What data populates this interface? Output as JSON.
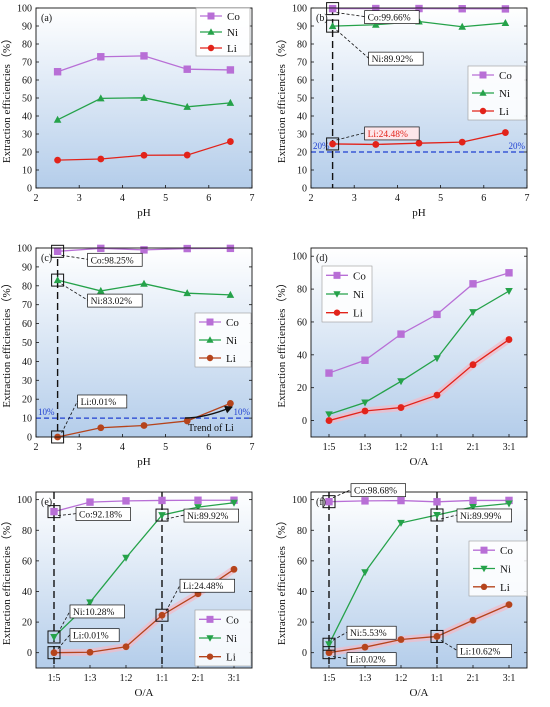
{
  "chart_data": [
    {
      "type": "line",
      "panel_label": "(a)",
      "xlabel": "pH",
      "ylabel": "Extraction efficiencies（%）",
      "x_is_categorical": false,
      "xlim": [
        2,
        7
      ],
      "ylim": [
        0,
        100
      ],
      "xticks": [
        2,
        3,
        4,
        5,
        6,
        7
      ],
      "yticks": [
        0,
        10,
        20,
        30,
        40,
        50,
        60,
        70,
        80,
        90,
        100
      ],
      "x": [
        2.5,
        3.5,
        4.5,
        5.5,
        6.5
      ],
      "series": [
        {
          "name": "Co",
          "color": "#b86fd6",
          "marker": "square",
          "values": [
            64.6,
            72.9,
            73.4,
            66.0,
            65.6
          ]
        },
        {
          "name": "Ni",
          "color": "#25a24a",
          "marker": "triangle-up",
          "values": [
            37.9,
            49.8,
            50.1,
            45.1,
            47.3
          ]
        },
        {
          "name": "Li",
          "color": "#e2231a",
          "marker": "circle",
          "values": [
            15.5,
            16.1,
            18.2,
            18.3,
            25.8
          ]
        }
      ],
      "legend_position": "top-right",
      "threshold": null,
      "callouts": []
    },
    {
      "type": "line",
      "panel_label": "(b)",
      "xlabel": "pH",
      "ylabel": "Extraction efficiencies（%）",
      "x_is_categorical": false,
      "xlim": [
        2,
        7
      ],
      "ylim": [
        0,
        100
      ],
      "xticks": [
        2,
        3,
        4,
        5,
        6,
        7
      ],
      "yticks": [
        0,
        10,
        20,
        30,
        40,
        50,
        60,
        70,
        80,
        90,
        100
      ],
      "x": [
        2.5,
        3.5,
        4.5,
        5.5,
        6.5
      ],
      "series": [
        {
          "name": "Co",
          "color": "#b86fd6",
          "marker": "square",
          "values": [
            99.66,
            99.7,
            99.7,
            99.6,
            99.5
          ]
        },
        {
          "name": "Ni",
          "color": "#25a24a",
          "marker": "triangle-up",
          "values": [
            89.92,
            90.7,
            92.5,
            89.6,
            91.7
          ]
        },
        {
          "name": "Li",
          "color": "#e2231a",
          "marker": "circle",
          "values": [
            24.48,
            24.2,
            24.9,
            25.5,
            30.8
          ]
        }
      ],
      "legend_position": "center-right",
      "threshold": {
        "value": 20,
        "label_left": "20%",
        "label_right": "20%"
      },
      "vline_x": 2.5,
      "callouts": [
        {
          "text": "Co:99.66%",
          "series": "Co",
          "x": 2.5,
          "y": 99.66,
          "text_color": "#111111"
        },
        {
          "text": "Ni:89.92%",
          "series": "Ni",
          "x": 2.5,
          "y": 89.92,
          "text_color": "#111111"
        },
        {
          "text": "Li:24.48%",
          "series": "Li",
          "x": 2.5,
          "y": 24.48,
          "text_color": "#e2231a"
        }
      ]
    },
    {
      "type": "line",
      "panel_label": "(c)",
      "xlabel": "pH",
      "ylabel": "Extraction efficiencies（%）",
      "x_is_categorical": false,
      "xlim": [
        2,
        7
      ],
      "ylim": [
        0,
        100
      ],
      "xticks": [
        2,
        3,
        4,
        5,
        6,
        7
      ],
      "yticks": [
        0,
        10,
        20,
        30,
        40,
        50,
        60,
        70,
        80,
        90,
        100
      ],
      "x": [
        2.5,
        3.5,
        4.5,
        5.5,
        6.5
      ],
      "series": [
        {
          "name": "Co",
          "color": "#b86fd6",
          "marker": "square",
          "values": [
            98.25,
            99.8,
            99.0,
            99.7,
            99.8
          ]
        },
        {
          "name": "Ni",
          "color": "#25a24a",
          "marker": "triangle-up",
          "values": [
            83.02,
            77.3,
            81.1,
            76.1,
            75.2
          ]
        },
        {
          "name": "Li",
          "color": "#b5441c",
          "marker": "circle",
          "values": [
            0.01,
            4.9,
            6.1,
            8.5,
            17.8
          ]
        }
      ],
      "legend_position": "center-right",
      "threshold": {
        "value": 10,
        "label_left": "10%",
        "label_right": "10%"
      },
      "vline_x": 2.5,
      "trend_label": "Trend of Li",
      "callouts": [
        {
          "text": "Co:98.25%",
          "series": "Co",
          "x": 2.5,
          "y": 98.25,
          "text_color": "#111111"
        },
        {
          "text": "Ni:83.02%",
          "series": "Ni",
          "x": 2.5,
          "y": 83.02,
          "text_color": "#111111"
        },
        {
          "text": "Li:0.01%",
          "series": "Li",
          "x": 2.5,
          "y": 0.01,
          "text_color": "#111111"
        }
      ]
    },
    {
      "type": "line",
      "panel_label": "(d)",
      "xlabel": "O/A",
      "ylabel": "Extraction efficiencies（%）",
      "x_is_categorical": true,
      "categories": [
        "1:5",
        "1:3",
        "1:2",
        "1:1",
        "2:1",
        "3:1"
      ],
      "ylim": [
        -10,
        105
      ],
      "yticks": [
        0,
        20,
        40,
        60,
        80,
        100
      ],
      "series": [
        {
          "name": "Co",
          "color": "#b86fd6",
          "marker": "square",
          "values": [
            28.9,
            36.7,
            52.6,
            64.6,
            83.2,
            89.9
          ]
        },
        {
          "name": "Ni",
          "color": "#25a24a",
          "marker": "triangle-down",
          "values": [
            3.8,
            11.0,
            23.9,
            37.9,
            66.0,
            78.8
          ]
        },
        {
          "name": "Li",
          "color": "#e2231a",
          "marker": "circle",
          "values": [
            0.0,
            5.8,
            7.9,
            15.5,
            34.0,
            49.3
          ]
        }
      ],
      "legend_position": "top-left",
      "threshold": null,
      "callouts": []
    },
    {
      "type": "line",
      "panel_label": "(e)",
      "xlabel": "O/A",
      "ylabel": "Extraction efficiencies（%）",
      "x_is_categorical": true,
      "categories": [
        "1:5",
        "1:3",
        "1:2",
        "1:1",
        "2:1",
        "3:1"
      ],
      "ylim": [
        -10,
        105
      ],
      "yticks": [
        0,
        20,
        40,
        60,
        80,
        100
      ],
      "series": [
        {
          "name": "Co",
          "color": "#b86fd6",
          "marker": "square",
          "values": [
            92.18,
            98.4,
            99.2,
            99.5,
            99.6,
            99.6
          ]
        },
        {
          "name": "Ni",
          "color": "#25a24a",
          "marker": "triangle-down",
          "values": [
            10.28,
            32.9,
            62.0,
            89.92,
            95.1,
            98.0
          ]
        },
        {
          "name": "Li",
          "color": "#b5441c",
          "marker": "circle",
          "values": [
            0.01,
            0.3,
            3.9,
            24.48,
            38.5,
            54.5
          ]
        }
      ],
      "legend_position": "bottom-right",
      "threshold": null,
      "vline_categories": [
        "1:5",
        "1:1"
      ],
      "callouts": [
        {
          "text": "Co:92.18%",
          "series": "Co",
          "category": "1:5",
          "y": 92.18,
          "text_color": "#111111"
        },
        {
          "text": "Ni:10.28%",
          "series": "Ni",
          "category": "1:5",
          "y": 10.28,
          "text_color": "#111111"
        },
        {
          "text": "Li:0.01%",
          "series": "Li",
          "category": "1:5",
          "y": 0.01,
          "text_color": "#111111"
        },
        {
          "text": "Ni:89.92%",
          "series": "Ni",
          "category": "1:1",
          "y": 89.92,
          "text_color": "#111111"
        },
        {
          "text": "Li:24.48%",
          "series": "Li",
          "category": "1:1",
          "y": 24.48,
          "text_color": "#111111"
        }
      ]
    },
    {
      "type": "line",
      "panel_label": "(f)",
      "xlabel": "O/A",
      "ylabel": "Extraction efficiencies（%）",
      "x_is_categorical": true,
      "categories": [
        "1:5",
        "1:3",
        "1:2",
        "1:1",
        "2:1",
        "3:1"
      ],
      "ylim": [
        -10,
        105
      ],
      "yticks": [
        0,
        20,
        40,
        60,
        80,
        100
      ],
      "series": [
        {
          "name": "Co",
          "color": "#b86fd6",
          "marker": "square",
          "values": [
            98.68,
            99.2,
            99.4,
            98.6,
            99.5,
            99.5
          ]
        },
        {
          "name": "Ni",
          "color": "#25a24a",
          "marker": "triangle-down",
          "values": [
            5.53,
            52.6,
            84.8,
            89.99,
            95.2,
            97.5
          ]
        },
        {
          "name": "Li",
          "color": "#b5441c",
          "marker": "circle",
          "values": [
            0.02,
            3.6,
            8.6,
            10.62,
            21.2,
            31.4
          ]
        }
      ],
      "legend_position": "center-right",
      "threshold": null,
      "vline_categories": [
        "1:5",
        "1:1"
      ],
      "callouts": [
        {
          "text": "Co:98.68%",
          "series": "Co",
          "category": "1:5",
          "y": 98.68,
          "text_color": "#111111"
        },
        {
          "text": "Ni:5.53%",
          "series": "Ni",
          "category": "1:5",
          "y": 5.53,
          "text_color": "#111111"
        },
        {
          "text": "Li:0.02%",
          "series": "Li",
          "category": "1:5",
          "y": 0.02,
          "text_color": "#111111"
        },
        {
          "text": "Ni:89.99%",
          "series": "Ni",
          "category": "1:1",
          "y": 89.99,
          "text_color": "#111111"
        },
        {
          "text": "Li:10.62%",
          "series": "Li",
          "category": "1:1",
          "y": 10.62,
          "text_color": "#111111"
        }
      ]
    }
  ],
  "colors": {
    "plot_gradient_top": "#ffffff",
    "plot_gradient_bottom": "#b4cdea",
    "threshold_line": "#1f3fd1",
    "guide_line": "#111111",
    "callout_highlight": "#f9d3da"
  }
}
